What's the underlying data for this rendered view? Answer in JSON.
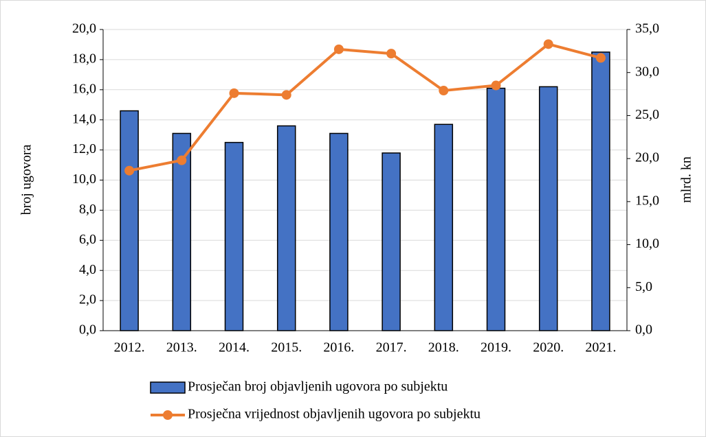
{
  "chart_data": {
    "type": "bar_line",
    "categories": [
      "2012.",
      "2013.",
      "2014.",
      "2015.",
      "2016.",
      "2017.",
      "2018.",
      "2019.",
      "2020.",
      "2021."
    ],
    "series": [
      {
        "name": "Prosječan broj objavljenih ugovora po subjektu",
        "type": "bar",
        "color": "#4472c4",
        "axis": "y",
        "values": [
          14.6,
          13.1,
          12.5,
          13.6,
          13.1,
          11.8,
          13.7,
          16.1,
          16.2,
          18.5
        ]
      },
      {
        "name": "Prosječna vrijednost objavljenih ugovora po subjektu",
        "type": "line",
        "color": "#ed7d31",
        "axis": "y2",
        "values": [
          18.6,
          19.8,
          27.6,
          27.4,
          32.7,
          32.2,
          27.9,
          28.5,
          33.3,
          31.7
        ]
      }
    ],
    "ylabel": "broj ugovora",
    "y2label": "mlrd. kn",
    "ylim": [
      0,
      20
    ],
    "yticks": [
      {
        "value": 0,
        "label": "0,0"
      },
      {
        "value": 2,
        "label": "2,0"
      },
      {
        "value": 4,
        "label": "4,0"
      },
      {
        "value": 6,
        "label": "6,0"
      },
      {
        "value": 8,
        "label": "8,0"
      },
      {
        "value": 10,
        "label": "10,0"
      },
      {
        "value": 12,
        "label": "12,0"
      },
      {
        "value": 14,
        "label": "14,0"
      },
      {
        "value": 16,
        "label": "16,0"
      },
      {
        "value": 18,
        "label": "18,0"
      },
      {
        "value": 20,
        "label": "20,0"
      }
    ],
    "y2lim": [
      0,
      35
    ],
    "y2ticks": [
      {
        "value": 0,
        "label": "0,0"
      },
      {
        "value": 5,
        "label": "5,0"
      },
      {
        "value": 10,
        "label": "10,0"
      },
      {
        "value": 15,
        "label": "15,0"
      },
      {
        "value": 20,
        "label": "20,0"
      },
      {
        "value": 25,
        "label": "25,0"
      },
      {
        "value": 30,
        "label": "30,0"
      },
      {
        "value": 35,
        "label": "35,0"
      }
    ],
    "grid": true,
    "legend": "bottom"
  }
}
